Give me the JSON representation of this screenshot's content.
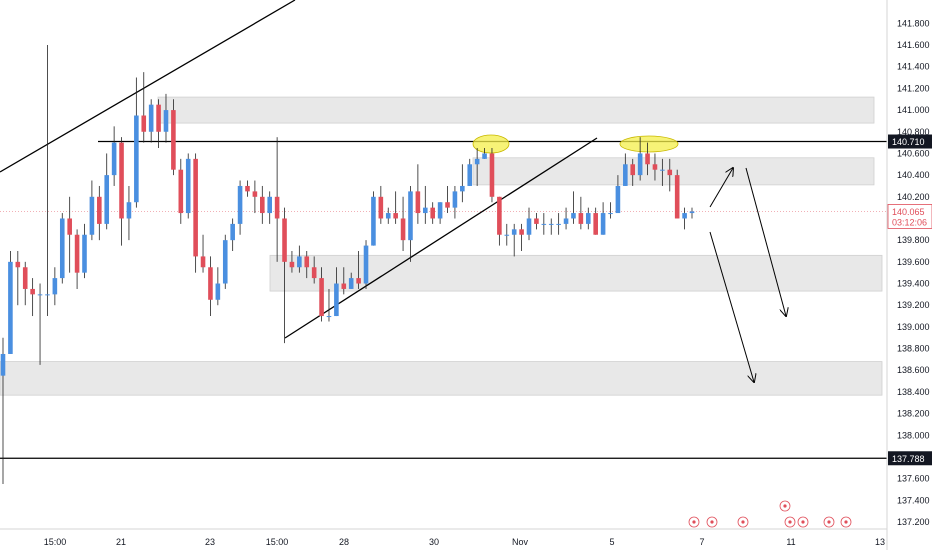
{
  "chart_data": {
    "type": "candlestick",
    "symbol_price_axis": {
      "ticks": [
        "137.200",
        "137.400",
        "137.600",
        "137.788",
        "138.000",
        "138.200",
        "138.400",
        "138.600",
        "138.800",
        "139.000",
        "139.200",
        "139.400",
        "139.600",
        "139.800",
        "140.000",
        "140.065",
        "140.200",
        "140.400",
        "140.600",
        "140.710",
        "140.800",
        "141.000",
        "141.200",
        "141.400",
        "141.600",
        "141.800"
      ],
      "ylim": [
        137.1,
        141.95
      ]
    },
    "time_axis": {
      "labels": [
        "15:00",
        "21",
        "23",
        "15:00",
        "28",
        "30",
        "Nov",
        "5",
        "7",
        "11",
        "13"
      ]
    },
    "current_price": {
      "value": 140.065,
      "label": "140.065",
      "countdown": "03:12:06",
      "color": "#e04e5a"
    },
    "level_labels": [
      {
        "value": 140.71,
        "label": "140.710"
      },
      {
        "value": 137.788,
        "label": "137.788"
      }
    ],
    "colors": {
      "up": "#4a8fe0",
      "down": "#e04e5a",
      "zone": "#e8e8e8",
      "ellipse": "#f4ef4a",
      "line": "#000000"
    },
    "candles": [
      [
        138.55,
        138.75,
        137.55,
        138.9
      ],
      [
        138.75,
        139.6,
        138.75,
        139.7
      ],
      [
        139.6,
        139.55,
        139.2,
        139.7
      ],
      [
        139.55,
        139.35,
        139.2,
        139.6
      ],
      [
        139.35,
        139.3,
        139.1,
        139.45
      ],
      [
        139.3,
        139.3,
        138.65,
        139.4
      ],
      [
        139.3,
        139.3,
        139.1,
        141.6
      ],
      [
        139.3,
        139.45,
        139.2,
        139.55
      ],
      [
        139.45,
        140.0,
        139.4,
        140.05
      ],
      [
        140.0,
        139.85,
        139.5,
        140.2
      ],
      [
        139.85,
        139.5,
        139.35,
        139.9
      ],
      [
        139.5,
        139.85,
        139.45,
        139.95
      ],
      [
        139.85,
        140.2,
        139.8,
        140.35
      ],
      [
        140.2,
        139.95,
        139.8,
        140.3
      ],
      [
        139.95,
        140.4,
        139.9,
        140.6
      ],
      [
        140.4,
        140.7,
        140.3,
        140.85
      ],
      [
        140.7,
        140.0,
        139.75,
        140.75
      ],
      [
        140.0,
        140.15,
        139.8,
        140.3
      ],
      [
        140.15,
        140.95,
        140.1,
        141.3
      ],
      [
        140.95,
        140.8,
        140.7,
        141.35
      ],
      [
        140.8,
        141.05,
        140.7,
        141.1
      ],
      [
        141.05,
        140.8,
        140.65,
        141.1
      ],
      [
        140.8,
        141.0,
        140.7,
        141.15
      ],
      [
        141.0,
        140.45,
        140.4,
        141.1
      ],
      [
        140.45,
        140.05,
        139.95,
        140.55
      ],
      [
        140.05,
        140.55,
        140.0,
        140.6
      ],
      [
        140.55,
        139.65,
        139.5,
        140.6
      ],
      [
        139.65,
        139.55,
        139.5,
        139.85
      ],
      [
        139.55,
        139.25,
        139.1,
        139.65
      ],
      [
        139.25,
        139.4,
        139.2,
        139.55
      ],
      [
        139.4,
        139.8,
        139.35,
        139.85
      ],
      [
        139.8,
        139.95,
        139.7,
        140.0
      ],
      [
        139.95,
        140.3,
        139.85,
        140.35
      ],
      [
        140.3,
        140.25,
        140.2,
        140.35
      ],
      [
        140.25,
        140.2,
        140.05,
        140.35
      ],
      [
        140.2,
        140.05,
        139.95,
        140.3
      ],
      [
        140.05,
        140.2,
        139.95,
        140.25
      ],
      [
        140.2,
        140.0,
        139.6,
        140.75
      ],
      [
        140.0,
        139.6,
        138.85,
        140.1
      ],
      [
        139.6,
        139.55,
        139.5,
        139.7
      ],
      [
        139.55,
        139.65,
        139.5,
        139.75
      ],
      [
        139.65,
        139.55,
        139.45,
        139.7
      ],
      [
        139.55,
        139.45,
        139.4,
        139.65
      ],
      [
        139.45,
        139.1,
        139.05,
        139.55
      ],
      [
        139.1,
        139.1,
        139.05,
        139.35
      ],
      [
        139.1,
        139.4,
        139.1,
        139.55
      ],
      [
        139.4,
        139.35,
        139.3,
        139.55
      ],
      [
        139.35,
        139.45,
        139.35,
        139.5
      ],
      [
        139.45,
        139.4,
        139.35,
        139.7
      ],
      [
        139.4,
        139.75,
        139.35,
        139.8
      ],
      [
        139.75,
        140.2,
        139.75,
        140.25
      ],
      [
        140.2,
        140.0,
        139.95,
        140.3
      ],
      [
        140.0,
        140.05,
        139.95,
        140.1
      ],
      [
        140.05,
        140.0,
        139.95,
        140.25
      ],
      [
        140.0,
        139.8,
        139.7,
        140.2
      ],
      [
        139.8,
        140.25,
        139.6,
        140.3
      ],
      [
        140.25,
        140.05,
        139.95,
        140.5
      ],
      [
        140.05,
        140.1,
        139.95,
        140.3
      ],
      [
        140.1,
        140.0,
        139.95,
        140.15
      ],
      [
        140.0,
        140.15,
        139.95,
        140.15
      ],
      [
        140.15,
        140.1,
        140.05,
        140.3
      ],
      [
        140.1,
        140.25,
        140.0,
        140.3
      ],
      [
        140.25,
        140.3,
        140.15,
        140.5
      ],
      [
        140.3,
        140.5,
        140.3,
        140.55
      ],
      [
        140.5,
        140.55,
        140.3,
        140.65
      ],
      [
        140.55,
        140.6,
        140.55,
        140.65
      ],
      [
        140.6,
        140.2,
        140.15,
        140.65
      ],
      [
        140.2,
        139.85,
        139.75,
        140.2
      ],
      [
        139.85,
        139.85,
        139.75,
        139.95
      ],
      [
        139.85,
        139.9,
        139.65,
        139.95
      ],
      [
        139.9,
        139.85,
        139.7,
        139.95
      ],
      [
        139.85,
        140.0,
        139.8,
        140.1
      ],
      [
        140.0,
        139.95,
        139.9,
        140.05
      ],
      [
        139.95,
        139.95,
        139.85,
        140.05
      ],
      [
        139.95,
        139.95,
        139.85,
        140.0
      ],
      [
        139.95,
        139.95,
        139.85,
        140.05
      ],
      [
        139.95,
        140.0,
        139.9,
        140.1
      ],
      [
        140.0,
        140.05,
        139.95,
        140.25
      ],
      [
        140.05,
        139.95,
        139.9,
        140.2
      ],
      [
        139.95,
        140.05,
        139.9,
        140.1
      ],
      [
        140.05,
        139.85,
        139.85,
        140.1
      ],
      [
        139.85,
        140.05,
        139.85,
        140.15
      ],
      [
        140.05,
        140.05,
        140.0,
        140.15
      ],
      [
        140.05,
        140.3,
        140.05,
        140.4
      ],
      [
        140.3,
        140.5,
        140.3,
        140.6
      ],
      [
        140.5,
        140.4,
        140.3,
        140.55
      ],
      [
        140.4,
        140.6,
        140.35,
        140.75
      ],
      [
        140.6,
        140.5,
        140.4,
        140.7
      ],
      [
        140.5,
        140.45,
        140.35,
        140.6
      ],
      [
        140.45,
        140.45,
        140.3,
        140.55
      ],
      [
        140.45,
        140.4,
        140.25,
        140.55
      ],
      [
        140.4,
        140.0,
        140.0,
        140.45
      ],
      [
        140.0,
        140.05,
        139.9,
        140.1
      ],
      [
        140.05,
        140.065,
        140.0,
        140.1
      ]
    ]
  }
}
